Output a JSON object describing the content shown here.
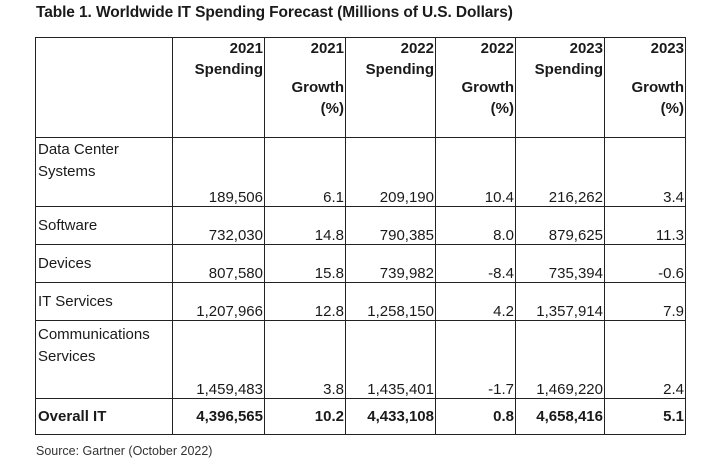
{
  "title": "Table 1. Worldwide IT Spending Forecast (Millions of U.S. Dollars)",
  "columns": [
    {
      "year": "2021",
      "label": "Spending",
      "label2": ""
    },
    {
      "year": "2021",
      "label": "Growth",
      "label2": "(%)"
    },
    {
      "year": "2022",
      "label": "Spending",
      "label2": ""
    },
    {
      "year": "2022",
      "label": "Growth",
      "label2": "(%)"
    },
    {
      "year": "2023",
      "label": "Spending",
      "label2": ""
    },
    {
      "year": "2023",
      "label": "Growth",
      "label2": "(%)"
    }
  ],
  "rows": [
    {
      "label_line1": "Data Center",
      "label_line2": "Systems",
      "values": [
        "189,506",
        "6.1",
        "209,190",
        "10.4",
        "216,262",
        "3.4"
      ]
    },
    {
      "label_line1": "Software",
      "label_line2": "",
      "values": [
        "732,030",
        "14.8",
        "790,385",
        "8.0",
        "879,625",
        "11.3"
      ]
    },
    {
      "label_line1": "Devices",
      "label_line2": "",
      "values": [
        "807,580",
        "15.8",
        "739,982",
        "-8.4",
        "735,394",
        "-0.6"
      ]
    },
    {
      "label_line1": "IT Services",
      "label_line2": "",
      "values": [
        "1,207,966",
        "12.8",
        "1,258,150",
        "4.2",
        "1,357,914",
        "7.9"
      ]
    },
    {
      "label_line1": "Communications",
      "label_line2": "Services",
      "values": [
        "1,459,483",
        "3.8",
        "1,435,401",
        "-1.7",
        "1,469,220",
        "2.4"
      ]
    },
    {
      "label_line1": "Overall IT",
      "label_line2": "",
      "values": [
        "4,396,565",
        "10.2",
        "4,433,108",
        "0.8",
        "4,658,416",
        "5.1"
      ]
    }
  ],
  "source": "Source: Gartner (October 2022)"
}
